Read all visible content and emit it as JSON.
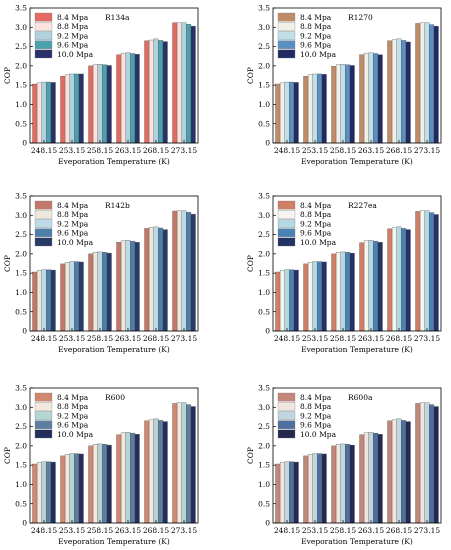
{
  "colors": {
    "series": [
      "#c3776a",
      "#e8ddd3",
      "#a8cfd6",
      "#4e7da6",
      "#263463"
    ],
    "panel_palettes": [
      [
        "#e36b62",
        "#fbe3df",
        "#b0d2de",
        "#4aa2ad",
        "#2a3168"
      ],
      [
        "#c08c68",
        "#f2efe8",
        "#bfe0eb",
        "#5d8ec2",
        "#1f2c63"
      ],
      [
        "#c4786a",
        "#ede8dc",
        "#bedae6",
        "#4d7fa9",
        "#283a66"
      ],
      [
        "#cf7e67",
        "#f6f4ee",
        "#b4d8e6",
        "#4a82b3",
        "#233164"
      ],
      [
        "#d08870",
        "#f2e8df",
        "#b3d5d3",
        "#5c7ea0",
        "#222e5c"
      ],
      [
        "#c2877a",
        "#f1e5e0",
        "#c0d7e0",
        "#4e6fa0",
        "#23294f"
      ]
    ]
  },
  "chart_data": [
    {
      "type": "bar",
      "panel_tag": "R134a",
      "categories": [
        "248.15",
        "253.15",
        "258.15",
        "263.15",
        "268.15",
        "273.15"
      ],
      "xlabel": "Eveporation Temperature (K)",
      "ylabel": "COP",
      "ylim": [
        0,
        3.5
      ],
      "yticks": [
        "0",
        "0.5",
        "1.0",
        "1.5",
        "2.0",
        "2.5",
        "3.0",
        "3.5"
      ],
      "legend_placement": "top-left",
      "series": [
        {
          "name": "8.4 Mpa",
          "values": [
            1.53,
            1.73,
            2.0,
            2.29,
            2.65,
            3.12
          ]
        },
        {
          "name": "8.8 Mpa",
          "values": [
            1.56,
            1.77,
            2.03,
            2.33,
            2.67,
            3.12
          ]
        },
        {
          "name": "9.2 Mpa",
          "values": [
            1.58,
            1.79,
            2.04,
            2.34,
            2.7,
            3.12
          ]
        },
        {
          "name": "9.6 Mpa",
          "values": [
            1.58,
            1.79,
            2.03,
            2.32,
            2.66,
            3.08
          ]
        },
        {
          "name": "10.0 Mpa",
          "values": [
            1.57,
            1.79,
            2.01,
            2.3,
            2.63,
            3.03
          ]
        }
      ]
    },
    {
      "type": "bar",
      "panel_tag": "R1270",
      "categories": [
        "248.15",
        "253.15",
        "258.15",
        "263.15",
        "268.15",
        "273.15"
      ],
      "xlabel": "Eveporation Temperature (K)",
      "ylabel": "COP",
      "ylim": [
        0,
        3.5
      ],
      "yticks": [
        "0",
        "0.5",
        "1.0",
        "1.5",
        "2.0",
        "2.5",
        "3.0",
        "3.5"
      ],
      "legend_placement": "top-left",
      "series": [
        {
          "name": "8.4 Mpa",
          "values": [
            1.53,
            1.73,
            1.99,
            2.29,
            2.65,
            3.1
          ]
        },
        {
          "name": "8.8 Mpa",
          "values": [
            1.56,
            1.77,
            2.03,
            2.33,
            2.68,
            3.12
          ]
        },
        {
          "name": "9.2 Mpa",
          "values": [
            1.58,
            1.79,
            2.04,
            2.34,
            2.7,
            3.12
          ]
        },
        {
          "name": "9.6 Mpa",
          "values": [
            1.58,
            1.79,
            2.03,
            2.32,
            2.66,
            3.07
          ]
        },
        {
          "name": "10.0 Mpa",
          "values": [
            1.57,
            1.78,
            2.01,
            2.29,
            2.62,
            3.03
          ]
        }
      ]
    },
    {
      "type": "bar",
      "panel_tag": "R142b",
      "categories": [
        "248.15",
        "253.15",
        "258.15",
        "263.15",
        "268.15",
        "273.15"
      ],
      "xlabel": "Eveporation Temperature (K)",
      "ylabel": "COP",
      "ylim": [
        0,
        3.5
      ],
      "yticks": [
        "0",
        "0.5",
        "1.0",
        "1.5",
        "2.0",
        "2.5",
        "3.0",
        "3.5"
      ],
      "legend_placement": "top-left",
      "series": [
        {
          "name": "8.4 Mpa",
          "values": [
            1.53,
            1.74,
            2.0,
            2.3,
            2.66,
            3.11
          ]
        },
        {
          "name": "8.8 Mpa",
          "values": [
            1.57,
            1.78,
            2.04,
            2.34,
            2.69,
            3.12
          ]
        },
        {
          "name": "9.2 Mpa",
          "values": [
            1.59,
            1.8,
            2.05,
            2.35,
            2.7,
            3.12
          ]
        },
        {
          "name": "9.6 Mpa",
          "values": [
            1.59,
            1.8,
            2.04,
            2.33,
            2.67,
            3.08
          ]
        },
        {
          "name": "10.0 Mpa",
          "values": [
            1.58,
            1.79,
            2.02,
            2.3,
            2.63,
            3.03
          ]
        }
      ]
    },
    {
      "type": "bar",
      "panel_tag": "R227ea",
      "categories": [
        "248.15",
        "253.15",
        "258.15",
        "263.15",
        "268.15",
        "273.15"
      ],
      "xlabel": "Eveporation Temperature (K)",
      "ylabel": "COP",
      "ylim": [
        0,
        3.5
      ],
      "yticks": [
        "0",
        "0.5",
        "1.0",
        "1.5",
        "2.0",
        "2.5",
        "3.0",
        "3.5"
      ],
      "legend_placement": "top-left",
      "series": [
        {
          "name": "8.4 Mpa",
          "values": [
            1.53,
            1.74,
            2.0,
            2.29,
            2.65,
            3.1
          ]
        },
        {
          "name": "8.8 Mpa",
          "values": [
            1.57,
            1.78,
            2.04,
            2.34,
            2.68,
            3.12
          ]
        },
        {
          "name": "9.2 Mpa",
          "values": [
            1.59,
            1.8,
            2.05,
            2.35,
            2.7,
            3.12
          ]
        },
        {
          "name": "9.6 Mpa",
          "values": [
            1.59,
            1.8,
            2.04,
            2.33,
            2.66,
            3.07
          ]
        },
        {
          "name": "10.0 Mpa",
          "values": [
            1.58,
            1.79,
            2.02,
            2.3,
            2.63,
            3.02
          ]
        }
      ]
    },
    {
      "type": "bar",
      "panel_tag": "R600",
      "categories": [
        "248.15",
        "253.15",
        "258.15",
        "263.15",
        "268.15",
        "273.15"
      ],
      "xlabel": "Eveporation Temperature (K)",
      "ylabel": "COP",
      "ylim": [
        0,
        3.5
      ],
      "yticks": [
        "0",
        "0.5",
        "1.0",
        "1.5",
        "2.0",
        "2.5",
        "3.0",
        "3.5"
      ],
      "legend_placement": "top-left",
      "series": [
        {
          "name": "8.4 Mpa",
          "values": [
            1.53,
            1.74,
            2.0,
            2.29,
            2.65,
            3.1
          ]
        },
        {
          "name": "8.8 Mpa",
          "values": [
            1.57,
            1.78,
            2.04,
            2.34,
            2.68,
            3.12
          ]
        },
        {
          "name": "9.2 Mpa",
          "values": [
            1.59,
            1.8,
            2.05,
            2.35,
            2.7,
            3.12
          ]
        },
        {
          "name": "9.6 Mpa",
          "values": [
            1.59,
            1.8,
            2.04,
            2.33,
            2.66,
            3.07
          ]
        },
        {
          "name": "10.0 Mpa",
          "values": [
            1.58,
            1.79,
            2.02,
            2.3,
            2.63,
            3.02
          ]
        }
      ]
    },
    {
      "type": "bar",
      "panel_tag": "R600a",
      "categories": [
        "248.15",
        "253.15",
        "258.15",
        "263.15",
        "268.15",
        "273.15"
      ],
      "xlabel": "Eveporation Temperature (K)",
      "ylabel": "COP",
      "ylim": [
        0,
        3.5
      ],
      "yticks": [
        "0",
        "0.5",
        "1.0",
        "1.5",
        "2.0",
        "2.5",
        "3.0",
        "3.5"
      ],
      "legend_placement": "top-left",
      "series": [
        {
          "name": "8.4 Mpa",
          "values": [
            1.53,
            1.74,
            2.0,
            2.29,
            2.65,
            3.1
          ]
        },
        {
          "name": "8.8 Mpa",
          "values": [
            1.57,
            1.78,
            2.04,
            2.34,
            2.68,
            3.12
          ]
        },
        {
          "name": "9.2 Mpa",
          "values": [
            1.59,
            1.8,
            2.05,
            2.35,
            2.7,
            3.12
          ]
        },
        {
          "name": "9.6 Mpa",
          "values": [
            1.59,
            1.8,
            2.04,
            2.33,
            2.66,
            3.07
          ]
        },
        {
          "name": "10.0 Mpa",
          "values": [
            1.58,
            1.79,
            2.02,
            2.3,
            2.63,
            3.02
          ]
        }
      ]
    }
  ]
}
